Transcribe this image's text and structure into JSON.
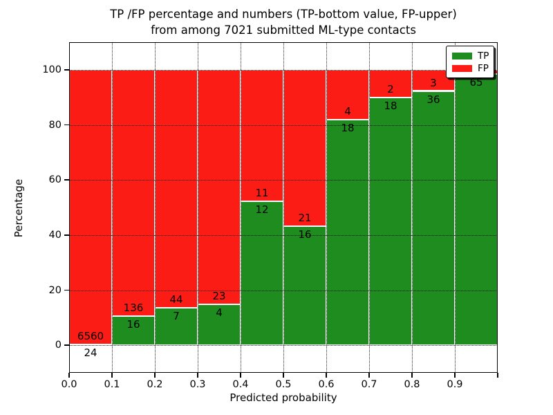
{
  "figure": {
    "title_line1": "TP /FP percentage and numbers (TP-bottom value, FP-upper)",
    "title_line2": "from among 7021 submitted ML-type contacts"
  },
  "chart_data": {
    "type": "bar",
    "subtype": "stacked-percentage",
    "title": "TP /FP percentage and numbers (TP-bottom value, FP-upper)\nfrom among 7021 submitted ML-type contacts",
    "xlabel": "Predicted probability",
    "ylabel": "Percentage",
    "xlim": [
      0.0,
      1.0
    ],
    "ylim": [
      -10,
      110
    ],
    "grid": "dotted, drawn above bars",
    "x_ticks": [
      {
        "value": 0.0,
        "label": "0.0"
      },
      {
        "value": 0.1,
        "label": "0.1"
      },
      {
        "value": 0.2,
        "label": "0.2"
      },
      {
        "value": 0.3,
        "label": "0.3"
      },
      {
        "value": 0.4,
        "label": "0.4"
      },
      {
        "value": 0.5,
        "label": "0.5"
      },
      {
        "value": 0.6,
        "label": "0.6"
      },
      {
        "value": 0.7,
        "label": "0.7"
      },
      {
        "value": 0.8,
        "label": "0.8"
      },
      {
        "value": 0.9,
        "label": "0.9"
      },
      {
        "value": 1.0,
        "label": ""
      }
    ],
    "y_ticks": [
      {
        "value": 0,
        "label": "0"
      },
      {
        "value": 20,
        "label": "20"
      },
      {
        "value": 40,
        "label": "40"
      },
      {
        "value": 60,
        "label": "60"
      },
      {
        "value": 80,
        "label": "80"
      },
      {
        "value": 100,
        "label": "100"
      }
    ],
    "legend": {
      "position": "upper right",
      "entries": [
        {
          "label": "TP",
          "color": "#1f8c1f"
        },
        {
          "label": "FP",
          "color": "#fb1d15"
        }
      ]
    },
    "colors": {
      "tp": "#1f8c1f",
      "fp": "#fb1d15",
      "bar_edge": "#ffffff"
    },
    "bars": [
      {
        "range": "0.0-0.1",
        "tp_count": "24",
        "fp_count": "6560",
        "tp_pct": 0.4,
        "fp_pct": 99.6
      },
      {
        "range": "0.1-0.2",
        "tp_count": "16",
        "fp_count": "136",
        "tp_pct": 10.5,
        "fp_pct": 89.5
      },
      {
        "range": "0.2-0.3",
        "tp_count": "7",
        "fp_count": "44",
        "tp_pct": 13.7,
        "fp_pct": 86.3
      },
      {
        "range": "0.3-0.4",
        "tp_count": "4",
        "fp_count": "23",
        "tp_pct": 14.8,
        "fp_pct": 85.2
      },
      {
        "range": "0.4-0.5",
        "tp_count": "12",
        "fp_count": "11",
        "tp_pct": 52.2,
        "fp_pct": 47.8
      },
      {
        "range": "0.5-0.6",
        "tp_count": "16",
        "fp_count": "21",
        "tp_pct": 43.2,
        "fp_pct": 56.8
      },
      {
        "range": "0.6-0.7",
        "tp_count": "18",
        "fp_count": "4",
        "tp_pct": 81.8,
        "fp_pct": 18.2
      },
      {
        "range": "0.7-0.8",
        "tp_count": "18",
        "fp_count": "2",
        "tp_pct": 90.0,
        "fp_pct": 10.0
      },
      {
        "range": "0.8-0.9",
        "tp_count": "36",
        "fp_count": "3",
        "tp_pct": 92.3,
        "fp_pct": 7.7
      },
      {
        "range": "0.9-1.0",
        "tp_count": "65",
        "fp_count": "",
        "tp_pct": 98.5,
        "fp_pct": 1.5
      }
    ]
  }
}
